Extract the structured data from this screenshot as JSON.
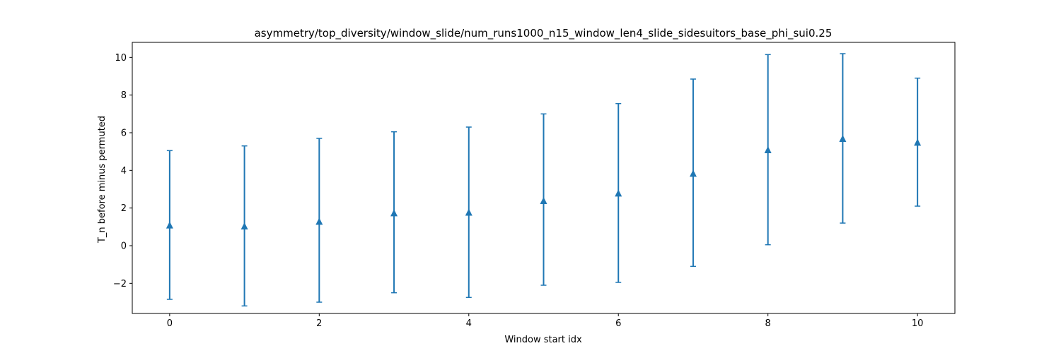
{
  "chart_data": {
    "type": "scatter",
    "title": "asymmetry/top_diversity/window_slide/num_runs1000_n15_window_len4_slide_sidesuitors_base_phi_sui0.25",
    "xlabel": "Window start idx",
    "ylabel": "T_n before minus permuted",
    "xlim": [
      -0.5,
      10.5
    ],
    "ylim": [
      -3.6,
      10.8
    ],
    "xticks": [
      0,
      2,
      4,
      6,
      8,
      10
    ],
    "xtick_labels": [
      "0",
      "2",
      "4",
      "6",
      "8",
      "10"
    ],
    "yticks": [
      -2,
      0,
      2,
      4,
      6,
      8,
      10
    ],
    "ytick_labels": [
      "−2",
      "0",
      "2",
      "4",
      "6",
      "8",
      "10"
    ],
    "grid": false,
    "legend": "none",
    "marker": "triangle-up",
    "color": "#1f77b4",
    "series": [
      {
        "x": [
          0,
          1,
          2,
          3,
          4,
          5,
          6,
          7,
          8,
          9,
          10
        ],
        "y": [
          1.1,
          1.05,
          1.3,
          1.75,
          1.78,
          2.4,
          2.8,
          3.85,
          5.1,
          5.7,
          5.5
        ],
        "y_upper": [
          5.05,
          5.3,
          5.7,
          6.05,
          6.3,
          7.0,
          7.55,
          8.85,
          10.15,
          10.2,
          8.9
        ],
        "y_lower": [
          -2.85,
          -3.2,
          -3.0,
          -2.5,
          -2.75,
          -2.1,
          -1.95,
          -1.1,
          0.05,
          1.2,
          2.1
        ]
      }
    ]
  }
}
